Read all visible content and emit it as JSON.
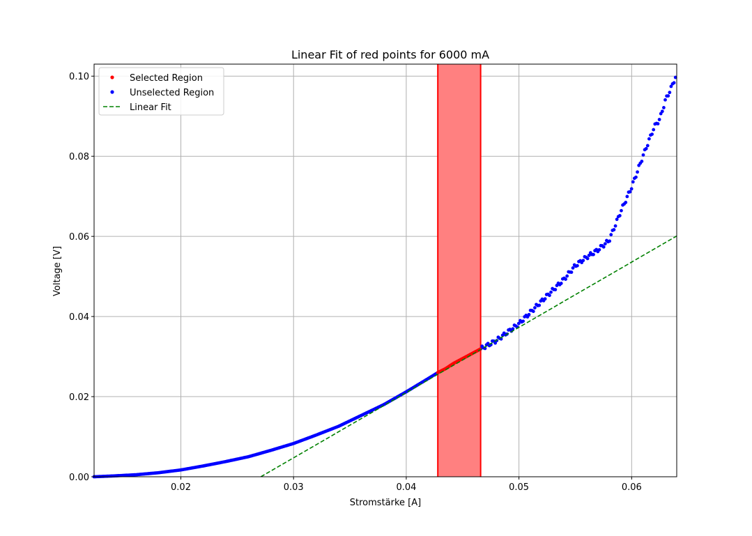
{
  "chart_data": {
    "type": "scatter",
    "title": "Linear Fit of red points for 6000 mA",
    "xlabel": "Stromstärke [A]",
    "ylabel": "Voltage [V]",
    "xlim": [
      0.0123,
      0.064
    ],
    "ylim": [
      0.0,
      0.103
    ],
    "xticks": [
      0.02,
      0.03,
      0.04,
      0.05,
      0.06
    ],
    "xtick_labels": [
      "0.02",
      "0.03",
      "0.04",
      "0.05",
      "0.06"
    ],
    "yticks": [
      0.0,
      0.02,
      0.04,
      0.06,
      0.08,
      0.1
    ],
    "ytick_labels": [
      "0.00",
      "0.02",
      "0.04",
      "0.06",
      "0.08",
      "0.10"
    ],
    "grid": true,
    "legend_placement": "top-left",
    "legend": [
      {
        "label": "Selected Region",
        "kind": "marker",
        "color": "#ff0000"
      },
      {
        "label": "Unselected Region",
        "kind": "marker",
        "color": "#0000ff"
      },
      {
        "label": "Linear Fit",
        "kind": "dashed-line",
        "color": "#008000"
      }
    ],
    "selected_span": {
      "x0": 0.0428,
      "x1": 0.0466,
      "fill": "#ff8080",
      "edge": "#ff0000"
    },
    "linear_fit": {
      "x0": 0.0271,
      "y0": 0.0,
      "x1": 0.064,
      "y1": 0.0601,
      "color": "#008000"
    },
    "unselected_curve": {
      "color": "#0000ff",
      "x": [
        0.0123,
        0.014,
        0.016,
        0.018,
        0.02,
        0.022,
        0.024,
        0.026,
        0.028,
        0.03,
        0.032,
        0.034,
        0.036,
        0.038,
        0.04,
        0.042,
        0.0428
      ],
      "y": [
        0.0,
        0.0002,
        0.0005,
        0.001,
        0.0017,
        0.0027,
        0.0038,
        0.005,
        0.0066,
        0.0083,
        0.0104,
        0.0126,
        0.0153,
        0.018,
        0.0212,
        0.0246,
        0.026
      ]
    },
    "selected_curve": {
      "color": "#ff0000",
      "x": [
        0.0428,
        0.0435,
        0.0442,
        0.045,
        0.0458,
        0.0466
      ],
      "y": [
        0.026,
        0.027,
        0.0283,
        0.0295,
        0.0307,
        0.0319
      ]
    },
    "upper_curve": {
      "color": "#0000ff",
      "x": [
        0.0466,
        0.048,
        0.05,
        0.052,
        0.054,
        0.055,
        0.056,
        0.057,
        0.058,
        0.059,
        0.06,
        0.061,
        0.062,
        0.0625,
        0.063,
        0.0635,
        0.064
      ],
      "y": [
        0.0319,
        0.034,
        0.0382,
        0.0438,
        0.0493,
        0.0527,
        0.0548,
        0.0566,
        0.059,
        0.066,
        0.0723,
        0.08,
        0.0873,
        0.0893,
        0.094,
        0.097,
        0.1005
      ]
    }
  }
}
